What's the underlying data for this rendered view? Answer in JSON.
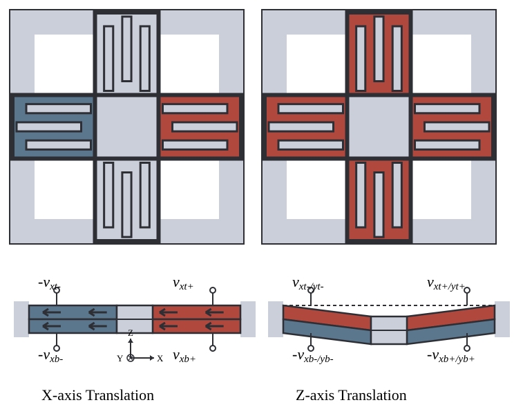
{
  "colors": {
    "frame_fill": "#cacfd9",
    "frame_stroke": "#2d2f35",
    "red": "#b1483d",
    "blue": "#5b778e",
    "bg": "#ffffff",
    "text": "#1a1a1a"
  },
  "layout": {
    "panel_size": 355,
    "panel_gap": 10,
    "side_height": 190
  },
  "top_panels": [
    {
      "name": "x-translation-top",
      "arms": {
        "left": {
          "fill_key": "blue",
          "outline": true
        },
        "right": {
          "fill_key": "red",
          "outline": true
        },
        "top": {
          "fill_key": "frame_fill",
          "outline": true
        },
        "bottom": {
          "fill_key": "frame_fill",
          "outline": true
        }
      }
    },
    {
      "name": "z-translation-top",
      "arms": {
        "left": {
          "fill_key": "red",
          "outline": true
        },
        "right": {
          "fill_key": "red",
          "outline": true
        },
        "top": {
          "fill_key": "red",
          "outline": true
        },
        "bottom": {
          "fill_key": "red",
          "outline": true
        }
      }
    }
  ],
  "side_views": [
    {
      "name": "x-side",
      "caption": "X-axis Translation",
      "show_arrows": true,
      "show_axes": true,
      "deflected": false,
      "layers": {
        "top": {
          "left_key": "blue",
          "right_key": "red"
        },
        "bottom": {
          "left_key": "blue",
          "right_key": "red"
        }
      },
      "labels": {
        "tl": {
          "text": "-v",
          "sub": "xt-"
        },
        "tr": {
          "text": "v",
          "sub": "xt+"
        },
        "bl": {
          "text": "-v",
          "sub": "xb-"
        },
        "br": {
          "text": "v",
          "sub": "xb+"
        }
      }
    },
    {
      "name": "z-side",
      "caption": "Z-axis Translation",
      "show_arrows": false,
      "show_axes": false,
      "deflected": true,
      "layers": {
        "top": {
          "left_key": "red",
          "right_key": "red"
        },
        "bottom": {
          "left_key": "blue",
          "right_key": "blue"
        }
      },
      "labels": {
        "tl": {
          "text": "v",
          "sub": "xt-/yt-"
        },
        "tr": {
          "text": "v",
          "sub": "xt+/yt+"
        },
        "bl": {
          "text": "-v",
          "sub": "xb-/yb-"
        },
        "br": {
          "text": "-v",
          "sub": "xb+/yb+"
        }
      }
    }
  ]
}
